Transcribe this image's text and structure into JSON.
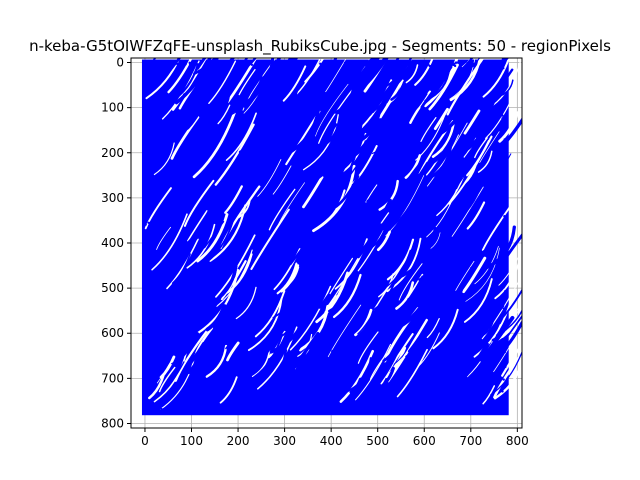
{
  "chart_data": {
    "type": "scatter",
    "title": "n-keba-G5tOIWFZqFE-unsplash_RubiksCube.jpg - Segments: 50 - regionPixels",
    "xlabel": "",
    "ylabel": "",
    "xlim": [
      -30,
      810
    ],
    "ylim": [
      810,
      -10
    ],
    "y_inverted": true,
    "grid": true,
    "xticks": [
      0,
      100,
      200,
      300,
      400,
      500,
      600,
      700,
      800
    ],
    "yticks": [
      0,
      100,
      200,
      300,
      400,
      500,
      600,
      700,
      800
    ],
    "series": [
      {
        "marker_color": "#0000ff",
        "x_range": [
          0,
          775
        ],
        "y_range": [
          0,
          775
        ],
        "stroke_direction": "diagonal-curved"
      }
    ],
    "background_color": "#ffffff",
    "underlay_color": "#808080"
  }
}
